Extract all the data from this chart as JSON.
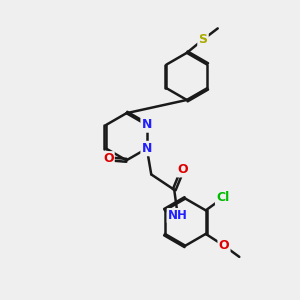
{
  "bg_color": "#efefef",
  "bond_color": "#1a1a1a",
  "N_color": "#2020ff",
  "O_color": "#dd0000",
  "Cl_color": "#00bb00",
  "S_color": "#aaaa00",
  "line_width": 1.8,
  "figsize": [
    3.0,
    3.0
  ],
  "dpi": 100,
  "xlim": [
    0,
    10
  ],
  "ylim": [
    0,
    10
  ]
}
